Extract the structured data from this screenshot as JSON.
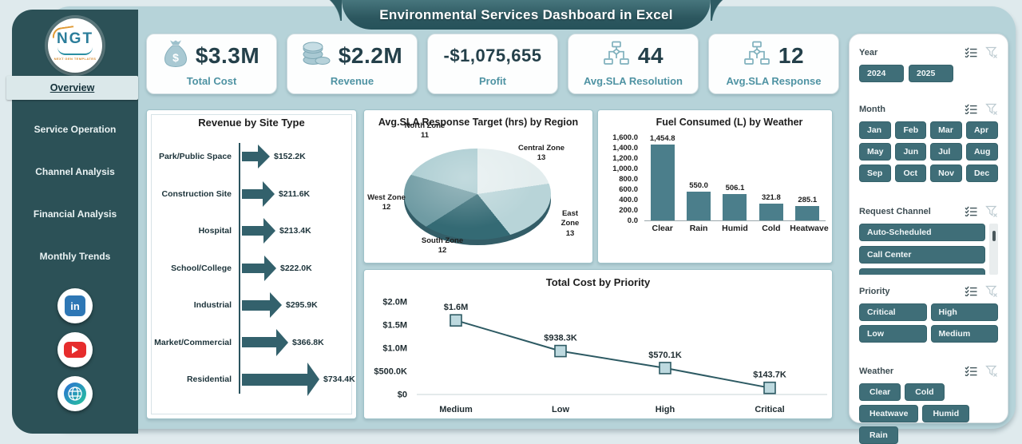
{
  "app_title": "Environmental Services Dashboard in Excel",
  "logo": {
    "text": "NGT",
    "subtext": "NEXT GEN TEMPLATES"
  },
  "sidebar": {
    "items": [
      {
        "label": "Overview",
        "active": true
      },
      {
        "label": "Service Operation",
        "active": false
      },
      {
        "label": "Channel Analysis",
        "active": false
      },
      {
        "label": "Financial Analysis",
        "active": false
      },
      {
        "label": "Monthly Trends",
        "active": false
      }
    ],
    "social": [
      {
        "name": "linkedin-icon"
      },
      {
        "name": "youtube-icon"
      },
      {
        "name": "website-globe-icon"
      }
    ]
  },
  "kpis": [
    {
      "icon": "money-bag-icon",
      "value": "$3.3M",
      "label": "Total Cost"
    },
    {
      "icon": "coins-icon",
      "value": "$2.2M",
      "label": "Revenue"
    },
    {
      "icon": "",
      "value": "-$1,075,655",
      "label": "Profit"
    },
    {
      "icon": "hierarchy-icon",
      "value": "44",
      "label": "Avg.SLA Resolution"
    },
    {
      "icon": "hierarchy-icon",
      "value": "12",
      "label": "Avg.SLA Response"
    }
  ],
  "slicers": [
    {
      "label": "Year",
      "layout": "year",
      "items": [
        "2024",
        "2025"
      ]
    },
    {
      "label": "Month",
      "layout": "grid4",
      "items": [
        "Jan",
        "Feb",
        "Mar",
        "Apr",
        "May",
        "Jun",
        "Jul",
        "Aug",
        "Sep",
        "Oct",
        "Nov",
        "Dec"
      ]
    },
    {
      "label": "Request Channel",
      "layout": "list",
      "items": [
        "Auto-Scheduled",
        "Call Center"
      ],
      "has_scrollbar": true,
      "partial_next_item": true
    },
    {
      "label": "Priority",
      "layout": "grid2",
      "items": [
        "Critical",
        "High",
        "Low",
        "Medium"
      ]
    },
    {
      "label": "Weather",
      "layout": "grid3",
      "items": [
        "Clear",
        "Cold",
        "Heatwave",
        "Humid",
        "Rain"
      ]
    }
  ],
  "colors": {
    "sidebar": "#2c5157",
    "panel": "#b6d3d9",
    "slicer_button": "#3f6e78",
    "arrow": "#33616c",
    "bar": "#4b7e8b",
    "line": "#2d5a63",
    "marker_fill": "#bdd9df",
    "kpi_value": "#24404a",
    "kpi_label": "#4f93a3"
  },
  "chart_data": [
    {
      "type": "bar",
      "variant": "horizontal-arrow",
      "title": "Revenue by Site Type",
      "categories": [
        "Park/Public Space",
        "Construction Site",
        "Hospital",
        "School/College",
        "Industrial",
        "Market/Commercial",
        "Residential"
      ],
      "values": [
        152.2,
        211.6,
        213.4,
        222.0,
        295.9,
        366.8,
        734.4
      ],
      "labels": [
        "$152.2K",
        "$211.6K",
        "$213.4K",
        "$222.0K",
        "$295.9K",
        "$366.8K",
        "$734.4K"
      ],
      "unit": "thousand USD"
    },
    {
      "type": "pie",
      "variant": "3d",
      "title": "Avg.SLA Response Target (hrs) by Region",
      "slices": [
        {
          "name": "Central Zone",
          "value": 13,
          "color": "#e3edee"
        },
        {
          "name": "East Zone",
          "value": 13,
          "color": "#b8d4d8"
        },
        {
          "name": "South Zone",
          "value": 12,
          "color": "#346a74"
        },
        {
          "name": "West Zone",
          "value": 12,
          "color": "#6f9ba3"
        },
        {
          "name": "North Zone",
          "value": 11,
          "color": "#a9cbd0"
        }
      ]
    },
    {
      "type": "bar",
      "title": "Fuel Consumed (L) by Weather",
      "categories": [
        "Clear",
        "Rain",
        "Humid",
        "Cold",
        "Heatwave"
      ],
      "values": [
        1454.8,
        550.0,
        506.1,
        321.8,
        285.1
      ],
      "labels": [
        "1,454.8",
        "550.0",
        "506.1",
        "321.8",
        "285.1"
      ],
      "ylim": [
        0,
        1600
      ],
      "ytick_step": 200
    },
    {
      "type": "line",
      "title": "Total Cost by Priority",
      "categories": [
        "Medium",
        "Low",
        "High",
        "Critical"
      ],
      "values": [
        1600000,
        938300,
        570100,
        143700
      ],
      "labels": [
        "$1.6M",
        "$938.3K",
        "$570.1K",
        "$143.7K"
      ],
      "yticks": [
        "$0",
        "$500.0K",
        "$1.0M",
        "$1.5M",
        "$2.0M"
      ],
      "ylim": [
        0,
        2000000
      ]
    }
  ]
}
